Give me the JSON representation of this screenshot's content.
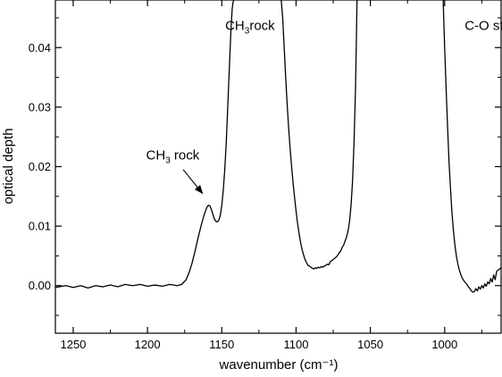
{
  "chart_data": {
    "type": "line",
    "title": "",
    "xlabel": "wavenumber (cm⁻¹)",
    "ylabel": "optical depth",
    "xlim": [
      1262,
      1052.0
    ],
    "xlim_note": "x axis is reversed (wavenumber decreasing left to right)",
    "xlim_full": [
      1262,
      962
    ],
    "ylim": [
      -0.008,
      0.048
    ],
    "x_ticks": [
      1250,
      1200,
      1150,
      1100,
      1050,
      1000
    ],
    "x_tick_labels": [
      "1250",
      "1200",
      "1150",
      "1100",
      "1050",
      "1000"
    ],
    "y_ticks": [
      0.0,
      0.01,
      0.02,
      0.03,
      0.04
    ],
    "y_tick_labels": [
      "0.00",
      "0.01",
      "0.02",
      "0.03",
      "0.04"
    ],
    "grid": false,
    "legend": "none",
    "series": [
      {
        "color": "#000000",
        "x": [
          1262,
          1255,
          1250,
          1245,
          1240,
          1235,
          1230,
          1225,
          1220,
          1215,
          1210,
          1205,
          1200,
          1195,
          1190,
          1185,
          1180,
          1177,
          1174,
          1172,
          1170,
          1168,
          1166,
          1164,
          1162,
          1160,
          1159,
          1158,
          1157,
          1156,
          1155,
          1154,
          1153,
          1152,
          1151,
          1150,
          1149,
          1148,
          1147,
          1146.5,
          1146,
          1145.5,
          1145,
          1144.5,
          1144,
          1143.5,
          1143,
          1142.5,
          1142
        ],
        "y": [
          -0.0003,
          0.0,
          -0.0003,
          0.0,
          -0.0004,
          0.0,
          -0.0002,
          0.0001,
          -0.0002,
          0.0002,
          0.0,
          0.0002,
          -0.0001,
          0.0001,
          -0.0001,
          0.0002,
          0.0,
          0.0002,
          0.001,
          0.0022,
          0.0038,
          0.0058,
          0.008,
          0.01,
          0.0118,
          0.0132,
          0.0135,
          0.0134,
          0.0128,
          0.012,
          0.0112,
          0.0108,
          0.0107,
          0.011,
          0.0118,
          0.0135,
          0.016,
          0.0195,
          0.024,
          0.027,
          0.03,
          0.033,
          0.036,
          0.039,
          0.042,
          0.0445,
          0.0465,
          0.0475,
          0.048
        ]
      },
      {
        "color": "#000000",
        "x": [
          1110,
          1109,
          1108,
          1107,
          1106,
          1105,
          1104,
          1103,
          1102,
          1101,
          1100,
          1099,
          1098,
          1097,
          1096,
          1095,
          1094,
          1093,
          1092,
          1091,
          1090,
          1089,
          1088,
          1087,
          1086,
          1085,
          1084,
          1083,
          1082,
          1081,
          1080,
          1079,
          1078,
          1077,
          1076,
          1075,
          1074,
          1073,
          1072,
          1071,
          1070,
          1069,
          1068,
          1067,
          1066,
          1065,
          1064,
          1063,
          1062,
          1061,
          1060,
          1059.5,
          1059
        ],
        "y": [
          0.048,
          0.045,
          0.04,
          0.035,
          0.0305,
          0.0265,
          0.023,
          0.02,
          0.0172,
          0.0148,
          0.0125,
          0.0105,
          0.0088,
          0.0073,
          0.0061,
          0.0052,
          0.0044,
          0.0039,
          0.0034,
          0.0033,
          0.0031,
          0.0029,
          0.0028,
          0.003,
          0.0029,
          0.0031,
          0.003,
          0.0032,
          0.0031,
          0.0033,
          0.0034,
          0.0036,
          0.0035,
          0.004,
          0.0042,
          0.0044,
          0.0046,
          0.0048,
          0.0051,
          0.0055,
          0.0058,
          0.0064,
          0.0068,
          0.0075,
          0.0082,
          0.0092,
          0.0108,
          0.0135,
          0.0175,
          0.024,
          0.033,
          0.04,
          0.048
        ]
      },
      {
        "color": "#000000",
        "x": [
          1001,
          1000,
          999,
          998,
          997,
          996,
          995,
          994,
          993,
          992,
          991,
          990,
          989,
          988,
          987,
          986,
          985,
          984,
          983,
          982,
          981,
          980,
          979,
          978,
          977,
          976,
          975,
          974,
          973,
          972,
          971,
          970,
          969,
          968,
          967,
          966,
          965,
          964,
          963,
          962
        ],
        "y": [
          0.048,
          0.04,
          0.033,
          0.0265,
          0.0205,
          0.016,
          0.012,
          0.009,
          0.0066,
          0.0048,
          0.0035,
          0.0025,
          0.0018,
          0.0012,
          0.0008,
          0.0005,
          0.0002,
          -0.0002,
          -0.0005,
          -0.0009,
          -0.0011,
          -0.001,
          -0.0005,
          -0.0009,
          -0.0002,
          -0.0006,
          0.0,
          -0.0004,
          0.0003,
          -0.0001,
          0.0006,
          0.0003,
          0.0012,
          0.0006,
          0.0018,
          0.001,
          0.0024,
          0.0026,
          0.0028,
          0.003
        ]
      }
    ],
    "annotations": [
      {
        "text": "CH",
        "sub": "3",
        "rest": "rock",
        "x": 1131,
        "y": 0.043
      },
      {
        "text": "C-O str",
        "x": 972,
        "y": 0.043
      },
      {
        "text": "CH",
        "sub": "3",
        "rest": " rock",
        "x": 1183,
        "y": 0.0212,
        "arrow_to": [
          1163,
          0.0155
        ],
        "arrow_from": [
          1176,
          0.0195
        ]
      }
    ]
  }
}
